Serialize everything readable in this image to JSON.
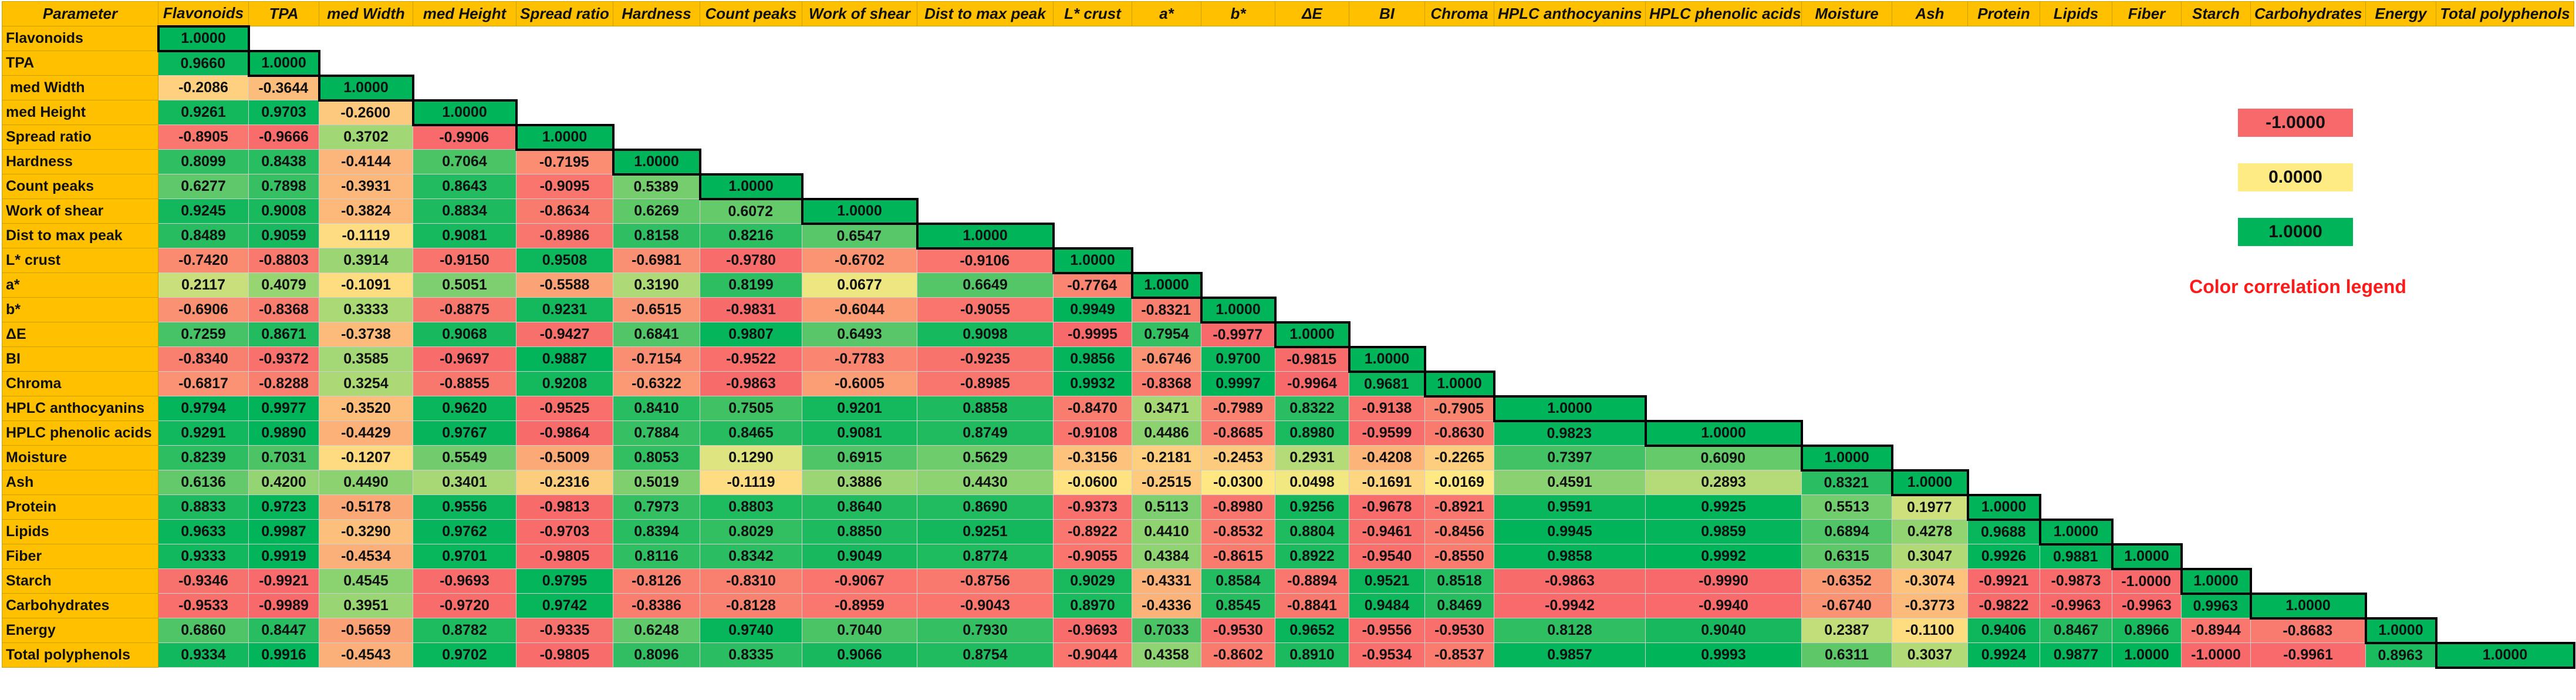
{
  "table": {
    "header": [
      "Parameter",
      "Flavonoids",
      "TPA",
      "med Width",
      "med Height",
      "Spread ratio",
      "Hardness",
      "Count peaks",
      "Work of shear",
      "Dist to max peak",
      "L* crust",
      "a*",
      "b*",
      "ΔE",
      "BI",
      "Chroma",
      "HPLC anthocyanins",
      "HPLC phenolic acids",
      "Moisture",
      "Ash",
      "Protein",
      "Lipids",
      "Fiber",
      "Starch",
      "Carbohydrates",
      "Energy",
      "Total polyphenols"
    ],
    "rows": [
      [
        "Flavonoids",
        "1.0000"
      ],
      [
        "TPA",
        "0.9660",
        "1.0000"
      ],
      [
        " med Width",
        "-0.2086",
        "-0.3644",
        "1.0000"
      ],
      [
        "med Height",
        "0.9261",
        "0.9703",
        "-0.2600",
        "1.0000"
      ],
      [
        "Spread ratio",
        "-0.8905",
        "-0.9666",
        "0.3702",
        "-0.9906",
        "1.0000"
      ],
      [
        "Hardness",
        "0.8099",
        "0.8438",
        "-0.4144",
        "0.7064",
        "-0.7195",
        "1.0000"
      ],
      [
        "Count peaks",
        "0.6277",
        "0.7898",
        "-0.3931",
        "0.8643",
        "-0.9095",
        "0.5389",
        "1.0000"
      ],
      [
        "Work of shear",
        "0.9245",
        "0.9008",
        "-0.3824",
        "0.8834",
        "-0.8634",
        "0.6269",
        "0.6072",
        "1.0000"
      ],
      [
        "Dist to max peak",
        "0.8489",
        "0.9059",
        "-0.1119",
        "0.9081",
        "-0.8986",
        "0.8158",
        "0.8216",
        "0.6547",
        "1.0000"
      ],
      [
        "L* crust",
        "-0.7420",
        "-0.8803",
        "0.3914",
        "-0.9150",
        "0.9508",
        "-0.6981",
        "-0.9780",
        "-0.6702",
        "-0.9106",
        "1.0000"
      ],
      [
        "a*",
        "0.2117",
        "0.4079",
        "-0.1091",
        "0.5051",
        "-0.5588",
        "0.3190",
        "0.8199",
        "0.0677",
        "0.6649",
        "-0.7764",
        "1.0000"
      ],
      [
        "b*",
        "-0.6906",
        "-0.8368",
        "0.3333",
        "-0.8875",
        "0.9231",
        "-0.6515",
        "-0.9831",
        "-0.6044",
        "-0.9055",
        "0.9949",
        "-0.8321",
        "1.0000"
      ],
      [
        "ΔE",
        "0.7259",
        "0.8671",
        "-0.3738",
        "0.9068",
        "-0.9427",
        "0.6841",
        "0.9807",
        "0.6493",
        "0.9098",
        "-0.9995",
        "0.7954",
        "-0.9977",
        "1.0000"
      ],
      [
        "BI",
        "-0.8340",
        "-0.9372",
        "0.3585",
        "-0.9697",
        "0.9887",
        "-0.7154",
        "-0.9522",
        "-0.7783",
        "-0.9235",
        "0.9856",
        "-0.6746",
        "0.9700",
        "-0.9815",
        "1.0000"
      ],
      [
        "Chroma",
        "-0.6817",
        "-0.8288",
        "0.3254",
        "-0.8855",
        "0.9208",
        "-0.6322",
        "-0.9863",
        "-0.6005",
        "-0.8985",
        "0.9932",
        "-0.8368",
        "0.9997",
        "-0.9964",
        "0.9681",
        "1.0000"
      ],
      [
        "HPLC anthocyanins",
        "0.9794",
        "0.9977",
        "-0.3520",
        "0.9620",
        "-0.9525",
        "0.8410",
        "0.7505",
        "0.9201",
        "0.8858",
        "-0.8470",
        "0.3471",
        "-0.7989",
        "0.8322",
        "-0.9138",
        "-0.7905",
        "1.0000"
      ],
      [
        "HPLC phenolic acids",
        "0.9291",
        "0.9890",
        "-0.4429",
        "0.9767",
        "-0.9864",
        "0.7884",
        "0.8465",
        "0.9081",
        "0.8749",
        "-0.9108",
        "0.4486",
        "-0.8685",
        "0.8980",
        "-0.9599",
        "-0.8630",
        "0.9823",
        "1.0000"
      ],
      [
        "Moisture",
        "0.8239",
        "0.7031",
        "-0.1207",
        "0.5549",
        "-0.5009",
        "0.8053",
        "0.1290",
        "0.6915",
        "0.5629",
        "-0.3156",
        "-0.2181",
        "-0.2453",
        "0.2931",
        "-0.4208",
        "-0.2265",
        "0.7397",
        "0.6090",
        "1.0000"
      ],
      [
        "Ash",
        "0.6136",
        "0.4200",
        "0.4490",
        "0.3401",
        "-0.2316",
        "0.5019",
        "-0.1119",
        "0.3886",
        "0.4430",
        "-0.0600",
        "-0.2515",
        "-0.0300",
        "0.0498",
        "-0.1691",
        "-0.0169",
        "0.4591",
        "0.2893",
        "0.8321",
        "1.0000"
      ],
      [
        "Protein",
        "0.8833",
        "0.9723",
        "-0.5178",
        "0.9556",
        "-0.9813",
        "0.7973",
        "0.8803",
        "0.8640",
        "0.8690",
        "-0.9373",
        "0.5113",
        "-0.8980",
        "0.9256",
        "-0.9678",
        "-0.8921",
        "0.9591",
        "0.9925",
        "0.5513",
        "0.1977",
        "1.0000"
      ],
      [
        "Lipids",
        "0.9633",
        "0.9987",
        "-0.3290",
        "0.9762",
        "-0.9703",
        "0.8394",
        "0.8029",
        "0.8850",
        "0.9251",
        "-0.8922",
        "0.4410",
        "-0.8532",
        "0.8804",
        "-0.9461",
        "-0.8456",
        "0.9945",
        "0.9859",
        "0.6894",
        "0.4278",
        "0.9688",
        "1.0000"
      ],
      [
        "Fiber",
        "0.9333",
        "0.9919",
        "-0.4534",
        "0.9701",
        "-0.9805",
        "0.8116",
        "0.8342",
        "0.9049",
        "0.8774",
        "-0.9055",
        "0.4384",
        "-0.8615",
        "0.8922",
        "-0.9540",
        "-0.8550",
        "0.9858",
        "0.9992",
        "0.6315",
        "0.3047",
        "0.9926",
        "0.9881",
        "1.0000"
      ],
      [
        "Starch",
        "-0.9346",
        "-0.9921",
        "0.4545",
        "-0.9693",
        "0.9795",
        "-0.8126",
        "-0.8310",
        "-0.9067",
        "-0.8756",
        "0.9029",
        "-0.4331",
        "0.8584",
        "-0.8894",
        "0.9521",
        "0.8518",
        "-0.9863",
        "-0.9990",
        "-0.6352",
        "-0.3074",
        "-0.9921",
        "-0.9873",
        "-1.0000",
        "1.0000"
      ],
      [
        "Carbohydrates",
        "-0.9533",
        "-0.9989",
        "0.3951",
        "-0.9720",
        "0.9742",
        "-0.8386",
        "-0.8128",
        "-0.8959",
        "-0.9043",
        "0.8970",
        "-0.4336",
        "0.8545",
        "-0.8841",
        "0.9484",
        "0.8469",
        "-0.9942",
        "-0.9940",
        "-0.6740",
        "-0.3773",
        "-0.9822",
        "-0.9963",
        "-0.9963",
        "0.9963",
        "1.0000"
      ],
      [
        "Energy",
        "0.6860",
        "0.8447",
        "-0.5659",
        "0.8782",
        "-0.9335",
        "0.6248",
        "0.9740",
        "0.7040",
        "0.7930",
        "-0.9693",
        "0.7033",
        "-0.9530",
        "0.9652",
        "-0.9556",
        "-0.9530",
        "0.8128",
        "0.9040",
        "0.2387",
        "-0.1100",
        "0.9406",
        "0.8467",
        "0.8966",
        "-0.8944",
        "-0.8683",
        "1.0000"
      ],
      [
        "Total polyphenols",
        "0.9334",
        "0.9916",
        "-0.4543",
        "0.9702",
        "-0.9805",
        "0.8096",
        "0.8335",
        "0.9066",
        "0.8754",
        "-0.9044",
        "0.4358",
        "-0.8602",
        "0.8910",
        "-0.9534",
        "-0.8537",
        "0.9857",
        "0.9993",
        "0.6311",
        "0.3037",
        "0.9924",
        "0.9877",
        "1.0000",
        "-1.0000",
        "-0.9961",
        "0.8963",
        "1.0000"
      ]
    ]
  },
  "legend": {
    "items": [
      "-1.0000",
      "0.0000",
      "1.0000"
    ],
    "title": "Color correlation legend"
  }
}
